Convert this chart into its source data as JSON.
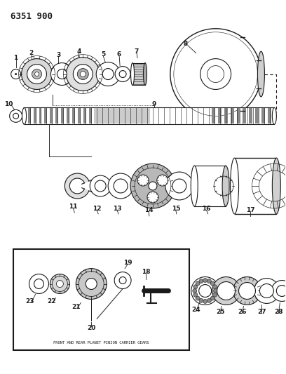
{
  "title": "6351 900",
  "bg_color": "#ffffff",
  "line_color": "#1a1a1a",
  "fig_width": 4.08,
  "fig_height": 5.33,
  "dpi": 100,
  "inset_label": "FRONT AND REAR PLANET PINION CARRIER GEARS"
}
